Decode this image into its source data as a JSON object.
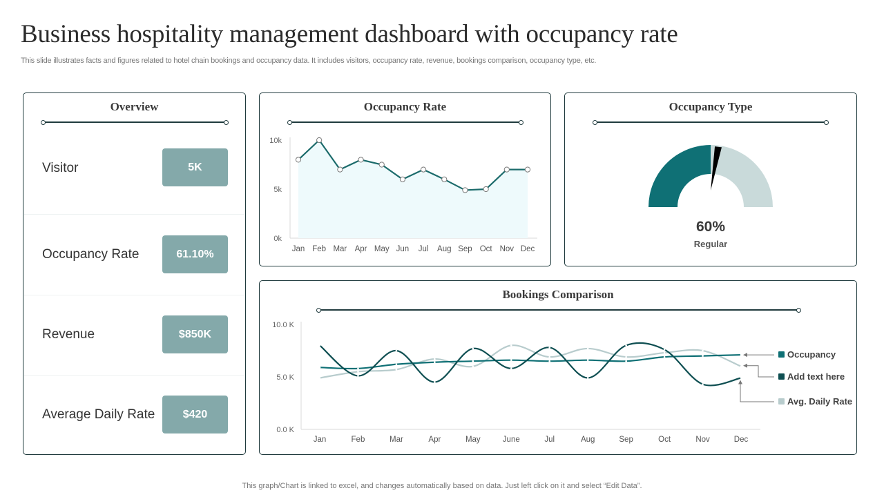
{
  "header": {
    "title": "Business hospitality management dashboard with occupancy rate",
    "subtitle": "This slide illustrates facts and figures related to hotel chain bookings and occupancy data. It includes visitors, occupancy rate, revenue, bookings comparison, occupancy type, etc."
  },
  "footer": "This graph/Chart is linked to excel, and changes automatically based on data. Just left click on it and select “Edit Data”.",
  "colors": {
    "accent": "#0f7075",
    "dark": "#0f4f52",
    "light": "#b8cccd",
    "badge": "#84a9aa",
    "area": "#eefafc"
  },
  "overview": {
    "title": "Overview",
    "items": [
      {
        "label": "Visitor",
        "value": "5K"
      },
      {
        "label": "Occupancy Rate",
        "value": "61.10%"
      },
      {
        "label": "Revenue",
        "value": "$850K"
      },
      {
        "label": "Average Daily Rate",
        "value": "$420"
      }
    ]
  },
  "chart_data": [
    {
      "id": "occupancy_rate",
      "type": "area",
      "title": "Occupancy Rate",
      "categories": [
        "Jan",
        "Feb",
        "Mar",
        "Apr",
        "May",
        "Jun",
        "Jul",
        "Aug",
        "Sep",
        "Oct",
        "Nov",
        "Dec"
      ],
      "values": [
        8,
        10,
        7,
        8,
        7.5,
        6,
        7,
        6,
        4.9,
        5,
        7,
        7
      ],
      "unit": "k",
      "yticks": [
        "0k",
        "5k",
        "10k"
      ],
      "ylim": [
        0,
        10
      ],
      "grid": false
    },
    {
      "id": "occupancy_type",
      "type": "pie",
      "title": "Occupancy Type",
      "subtype": "half-donut gauge",
      "value_label": "60%",
      "category_label": "Regular",
      "filled_fraction": 0.5,
      "needle_fraction": 0.54
    },
    {
      "id": "bookings_comparison",
      "type": "line",
      "title": "Bookings Comparison",
      "categories": [
        "Jan",
        "Feb",
        "Mar",
        "Apr",
        "May",
        "June",
        "Jul",
        "Aug",
        "Sep",
        "Oct",
        "Nov",
        "Dec"
      ],
      "yticks": [
        "0.0 K",
        "5.0 K",
        "10.0 K"
      ],
      "ylim": [
        0,
        10
      ],
      "legend_position": "right",
      "series": [
        {
          "name": "Occupancy",
          "color": "#0f7075",
          "values": [
            5.9,
            5.8,
            6.2,
            6.4,
            6.5,
            6.6,
            6.5,
            6.6,
            6.5,
            6.9,
            7.0,
            7.1
          ]
        },
        {
          "name": "Add text here",
          "color": "#0f4f52",
          "values": [
            8.0,
            5.1,
            7.5,
            4.5,
            7.7,
            5.8,
            7.8,
            4.9,
            8.0,
            7.6,
            4.3,
            4.9
          ]
        },
        {
          "name": "Avg. Daily Rate",
          "color": "#b8cccd",
          "values": [
            4.9,
            5.5,
            5.7,
            6.7,
            6.0,
            8.0,
            6.9,
            7.7,
            6.9,
            7.3,
            7.5,
            6.0
          ]
        }
      ]
    }
  ]
}
